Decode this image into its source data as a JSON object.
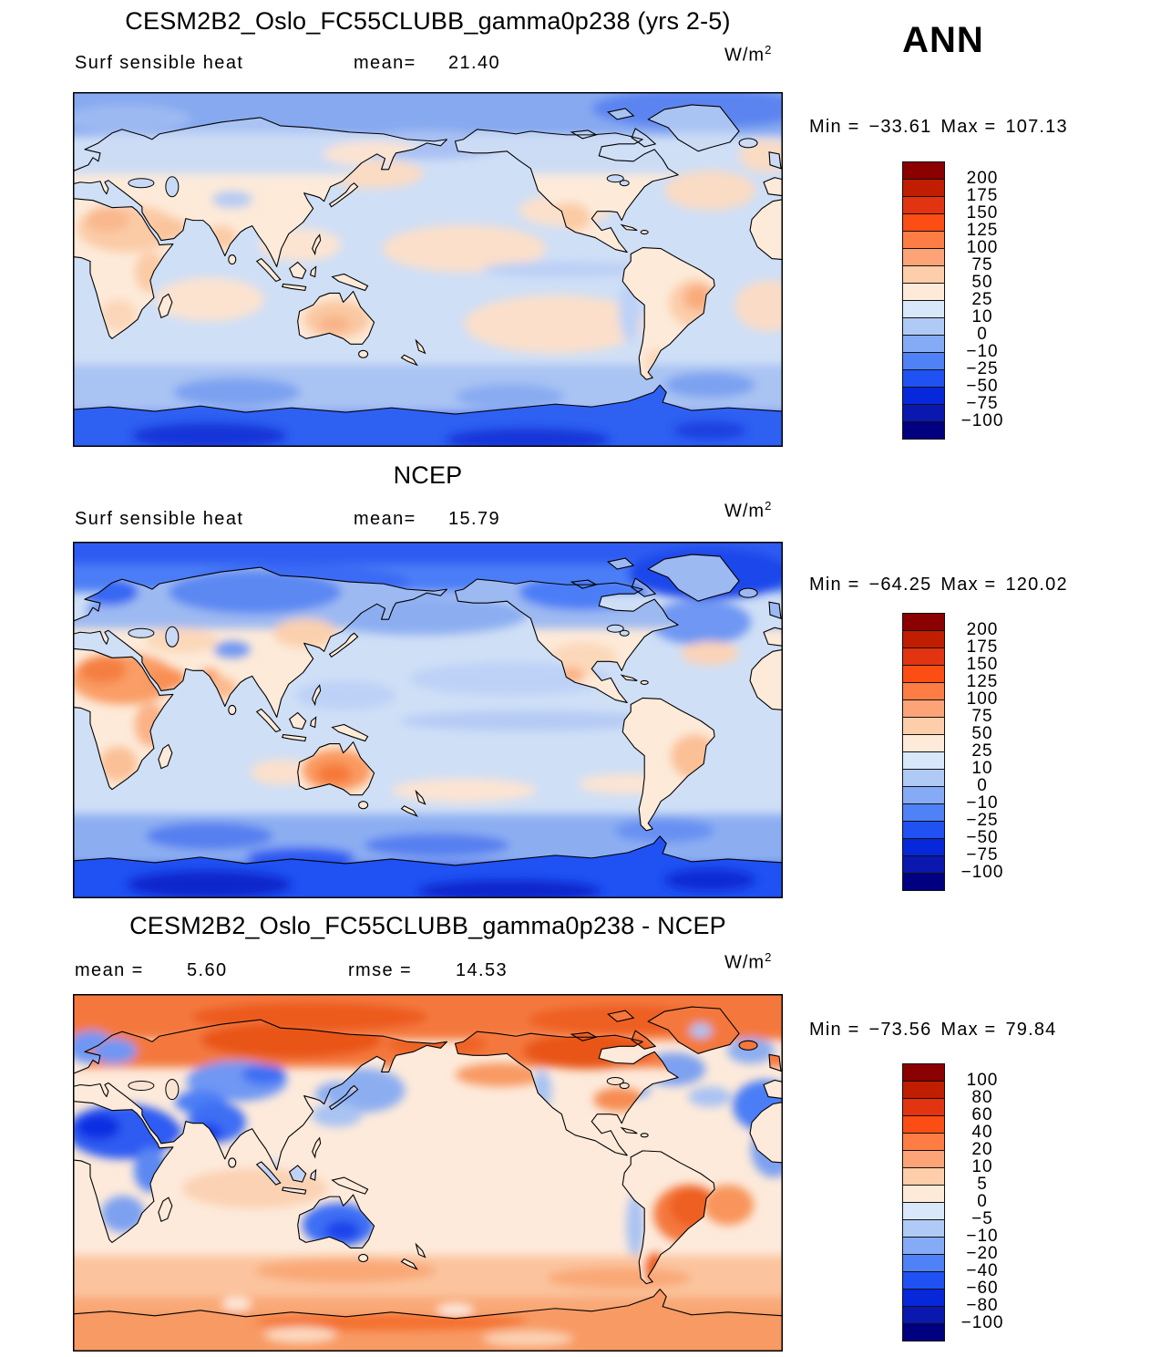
{
  "season_label": "ANN",
  "colorbar": {
    "colors": [
      "#8b0000",
      "#c11d00",
      "#e23410",
      "#fc4e14",
      "#fd7d45",
      "#fda378",
      "#fecdaa",
      "#feead8",
      "#d8e7fa",
      "#b0caf6",
      "#86abf6",
      "#4f81f7",
      "#1f51f3",
      "#0627da",
      "#0a18b0",
      "#000080"
    ],
    "levels_main": [
      "200",
      "175",
      "150",
      "125",
      "100",
      "75",
      "50",
      "25",
      "10",
      "0",
      "−10",
      "−25",
      "−50",
      "−75",
      "−100"
    ],
    "levels_diff": [
      "100",
      "80",
      "60",
      "40",
      "20",
      "10",
      "5",
      "0",
      "−5",
      "−10",
      "−20",
      "−40",
      "−60",
      "−80",
      "−100"
    ]
  },
  "panels": [
    {
      "title": "CESM2B2_Oslo_FC55CLUBB_gamma0p238 (yrs 2-5)",
      "field": "Surf sensible heat",
      "mean_label": "mean=",
      "mean": "21.40",
      "units_base": "W/m",
      "units_exp": "2",
      "min_label": "Min =",
      "min": "−33.61",
      "max_label": "Max =",
      "max": "107.13"
    },
    {
      "title": "NCEP",
      "field": "Surf sensible heat",
      "mean_label": "mean=",
      "mean": "15.79",
      "units_base": "W/m",
      "units_exp": "2",
      "min_label": "Min =",
      "min": "−64.25",
      "max_label": "Max =",
      "max": "120.02"
    },
    {
      "title": "CESM2B2_Oslo_FC55CLUBB_gamma0p238 - NCEP",
      "mean_label": "mean =",
      "mean": "5.60",
      "rmse_label": "rmse =",
      "rmse": "14.53",
      "units_base": "W/m",
      "units_exp": "2",
      "min_label": "Min =",
      "min": "−73.56",
      "max_label": "Max =",
      "max": "79.84"
    }
  ],
  "chart_data": [
    {
      "type": "heatmap",
      "subtype": "filled-contour-global-map",
      "title": "CESM2B2_Oslo_FC55CLUBB_gamma0p238 (yrs 2-5)",
      "variable": "Surf sensible heat",
      "season": "ANN",
      "units": "W/m^2",
      "mean": 21.4,
      "min": -33.61,
      "max": 107.13,
      "contour_levels": [
        200,
        175,
        150,
        125,
        100,
        75,
        50,
        25,
        10,
        0,
        -10,
        -25,
        -50,
        -75,
        -100
      ],
      "palette": [
        "#8b0000",
        "#c11d00",
        "#e23410",
        "#fc4e14",
        "#fd7d45",
        "#fda378",
        "#fecdaa",
        "#feead8",
        "#d8e7fa",
        "#b0caf6",
        "#86abf6",
        "#4f81f7",
        "#1f51f3",
        "#0627da",
        "#0a18b0",
        "#000080"
      ],
      "projection": "global cylindrical, Pacific-centered",
      "legend_position": "right"
    },
    {
      "type": "heatmap",
      "subtype": "filled-contour-global-map",
      "title": "NCEP",
      "variable": "Surf sensible heat",
      "season": "ANN",
      "units": "W/m^2",
      "mean": 15.79,
      "min": -64.25,
      "max": 120.02,
      "contour_levels": [
        200,
        175,
        150,
        125,
        100,
        75,
        50,
        25,
        10,
        0,
        -10,
        -25,
        -50,
        -75,
        -100
      ],
      "palette": [
        "#8b0000",
        "#c11d00",
        "#e23410",
        "#fc4e14",
        "#fd7d45",
        "#fda378",
        "#fecdaa",
        "#feead8",
        "#d8e7fa",
        "#b0caf6",
        "#86abf6",
        "#4f81f7",
        "#1f51f3",
        "#0627da",
        "#0a18b0",
        "#000080"
      ],
      "projection": "global cylindrical, Pacific-centered",
      "legend_position": "right"
    },
    {
      "type": "heatmap",
      "subtype": "filled-contour-global-map-difference",
      "title": "CESM2B2_Oslo_FC55CLUBB_gamma0p238 - NCEP",
      "variable": "Surf sensible heat difference",
      "season": "ANN",
      "units": "W/m^2",
      "mean": 5.6,
      "rmse": 14.53,
      "min": -73.56,
      "max": 79.84,
      "contour_levels": [
        100,
        80,
        60,
        40,
        20,
        10,
        5,
        0,
        -5,
        -10,
        -20,
        -40,
        -60,
        -80,
        -100
      ],
      "palette": [
        "#8b0000",
        "#c11d00",
        "#e23410",
        "#fc4e14",
        "#fd7d45",
        "#fda378",
        "#fecdaa",
        "#feead8",
        "#d8e7fa",
        "#b0caf6",
        "#86abf6",
        "#4f81f7",
        "#1f51f3",
        "#0627da",
        "#0a18b0",
        "#000080"
      ],
      "projection": "global cylindrical, Pacific-centered",
      "legend_position": "right"
    }
  ]
}
